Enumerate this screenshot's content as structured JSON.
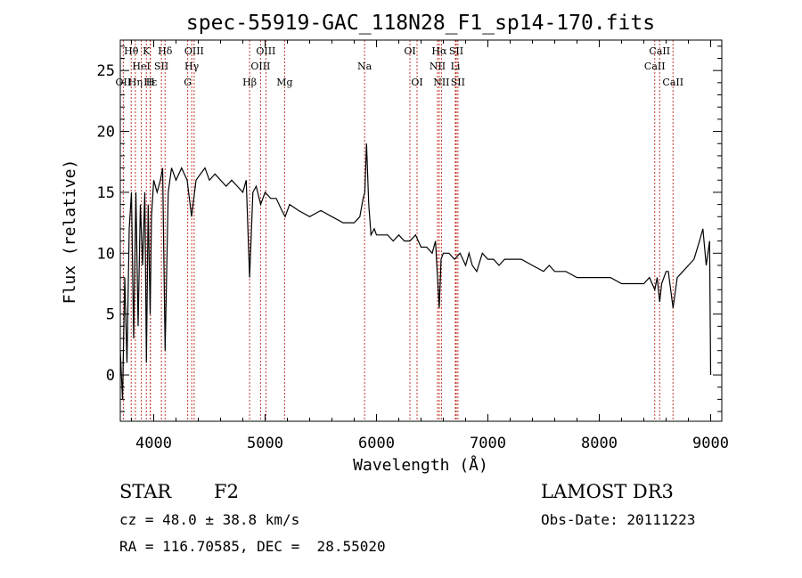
{
  "chart_data": {
    "type": "line",
    "title": "spec-55919-GAC_118N28_F1_sp14-170.fits",
    "xlabel": "Wavelength (Å)",
    "ylabel": "Flux (relative)",
    "xlim": [
      3700,
      9100
    ],
    "ylim": [
      -3.8,
      27.5
    ],
    "xticks": [
      4000,
      5000,
      6000,
      7000,
      8000,
      9000
    ],
    "yticks": [
      0,
      5,
      10,
      15,
      20,
      25
    ],
    "series": [
      {
        "name": "spectrum",
        "x": [
          3700,
          3720,
          3740,
          3760,
          3780,
          3800,
          3820,
          3840,
          3860,
          3880,
          3900,
          3920,
          3934,
          3950,
          3968,
          3980,
          4000,
          4030,
          4060,
          4080,
          4102,
          4130,
          4160,
          4200,
          4250,
          4300,
          4340,
          4380,
          4420,
          4460,
          4500,
          4550,
          4600,
          4650,
          4700,
          4750,
          4800,
          4830,
          4861,
          4890,
          4920,
          4960,
          5000,
          5050,
          5100,
          5150,
          5180,
          5220,
          5300,
          5400,
          5500,
          5600,
          5700,
          5800,
          5850,
          5880,
          5895,
          5910,
          5930,
          5950,
          5980,
          6000,
          6050,
          6100,
          6150,
          6200,
          6250,
          6300,
          6350,
          6400,
          6450,
          6500,
          6530,
          6563,
          6580,
          6600,
          6650,
          6700,
          6750,
          6800,
          6830,
          6860,
          6900,
          6950,
          7000,
          7050,
          7100,
          7150,
          7200,
          7300,
          7400,
          7500,
          7550,
          7600,
          7700,
          7800,
          7900,
          8000,
          8100,
          8200,
          8300,
          8400,
          8450,
          8498,
          8520,
          8542,
          8560,
          8600,
          8620,
          8662,
          8700,
          8750,
          8800,
          8850,
          8900,
          8930,
          8960,
          8990,
          9000
        ],
        "y": [
          2,
          -2,
          8,
          1,
          12,
          15,
          3,
          15,
          4,
          14,
          9,
          15,
          1,
          14,
          5,
          13,
          16,
          15,
          16,
          17,
          2,
          15,
          17,
          16,
          17,
          16,
          13,
          16,
          16.5,
          17,
          16,
          16.5,
          16,
          15.5,
          16,
          15.5,
          15,
          16,
          8,
          15,
          15.5,
          14,
          15,
          14.5,
          14.5,
          13.5,
          13,
          14,
          13.5,
          13,
          13.5,
          13,
          12.5,
          12.5,
          13,
          14.5,
          15,
          19,
          14,
          11.5,
          12,
          11.5,
          11.5,
          11.5,
          11,
          11.5,
          11,
          11,
          11.5,
          10.5,
          10.5,
          10,
          11,
          5.5,
          9.5,
          10,
          10,
          9.5,
          10,
          9,
          10,
          9,
          8.5,
          10,
          9.5,
          9.5,
          9,
          9.5,
          9.5,
          9.5,
          9,
          8.5,
          9,
          8.5,
          8.5,
          8,
          8,
          8,
          8,
          7.5,
          7.5,
          7.5,
          8,
          7,
          8,
          6,
          7.5,
          8.5,
          8.5,
          5.5,
          8,
          8.5,
          9,
          9.5,
          11,
          12,
          9,
          11,
          0
        ]
      }
    ],
    "lines": [
      {
        "name": "Hθ",
        "wavelength": 3798,
        "row": 1
      },
      {
        "name": "Hε",
        "wavelength": 3970,
        "row": 3
      },
      {
        "name": "OII",
        "wavelength": 3727,
        "row": 3
      },
      {
        "name": "K",
        "wavelength": 3934,
        "row": 1
      },
      {
        "name": "H",
        "wavelength": 3969,
        "row": 3
      },
      {
        "name": "Hη",
        "wavelength": 3835,
        "row": 3
      },
      {
        "name": "HeI",
        "wavelength": 3889,
        "row": 2
      },
      {
        "name": "SII",
        "wavelength": 4069,
        "row": 2
      },
      {
        "name": "Hδ",
        "wavelength": 4102,
        "row": 1
      },
      {
        "name": "OIII",
        "wavelength": 4363,
        "row": 1
      },
      {
        "name": "Hγ",
        "wavelength": 4341,
        "row": 2
      },
      {
        "name": "G",
        "wavelength": 4305,
        "row": 3
      },
      {
        "name": "Hβ",
        "wavelength": 4861,
        "row": 3
      },
      {
        "name": "OIII",
        "wavelength": 4959,
        "row": 2
      },
      {
        "name": "OIII",
        "wavelength": 5007,
        "row": 1
      },
      {
        "name": "Mg",
        "wavelength": 5175,
        "row": 3
      },
      {
        "name": "Na",
        "wavelength": 5893,
        "row": 2
      },
      {
        "name": "OI",
        "wavelength": 6300,
        "row": 1
      },
      {
        "name": "OI",
        "wavelength": 6364,
        "row": 3
      },
      {
        "name": "Hα",
        "wavelength": 6563,
        "row": 1
      },
      {
        "name": "NII",
        "wavelength": 6548,
        "row": 2
      },
      {
        "name": "NII",
        "wavelength": 6583,
        "row": 3
      },
      {
        "name": "Li",
        "wavelength": 6708,
        "row": 2
      },
      {
        "name": "SII",
        "wavelength": 6716,
        "row": 1
      },
      {
        "name": "SII",
        "wavelength": 6731,
        "row": 3
      },
      {
        "name": "CaII",
        "wavelength": 8542,
        "row": 1
      },
      {
        "name": "CaII",
        "wavelength": 8498,
        "row": 2
      },
      {
        "name": "CaII",
        "wavelength": 8662,
        "row": 3
      }
    ],
    "legend": "none"
  },
  "info": {
    "class": "STAR",
    "subclass": "F2",
    "survey": "LAMOST DR3",
    "cz": "cz = 48.0 ± 38.8 km/s",
    "obs_date": "Obs-Date: 20111223",
    "coords": "RA = 116.70585, DEC =  28.55020"
  },
  "colors": {
    "spectrum": "#000000",
    "lines": "#c0392b"
  }
}
